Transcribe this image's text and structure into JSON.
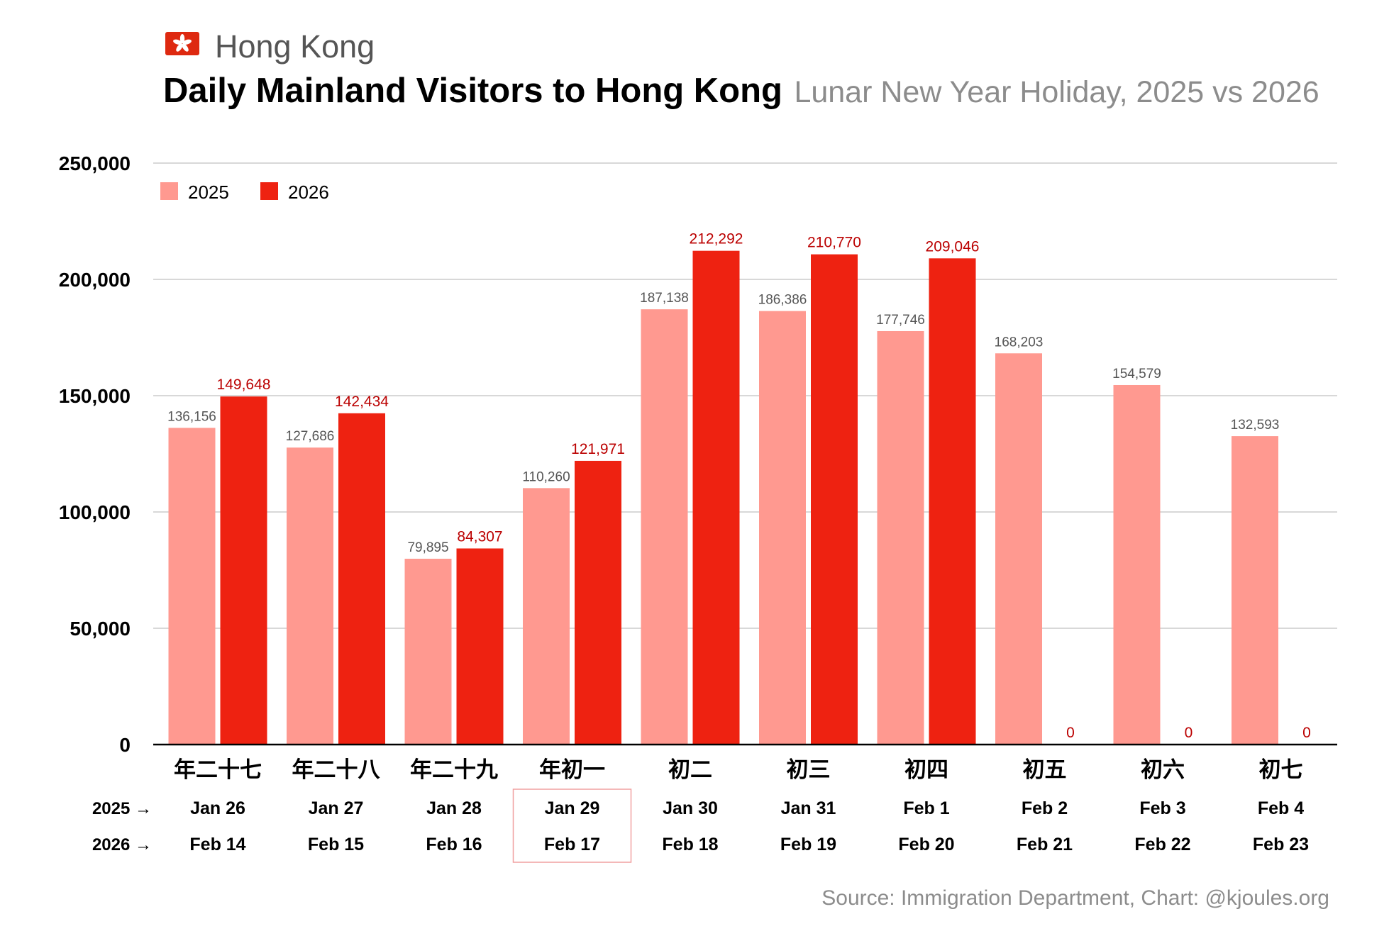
{
  "header": {
    "flag_icon": "hong-kong-flag-icon",
    "region": "Hong Kong",
    "title": "Daily Mainland Visitors to Hong Kong",
    "subtitle": "Lunar New Year Holiday, 2025 vs 2026"
  },
  "source": "Source: Immigration Department, Chart: @kjoules.org",
  "colors": {
    "s2025": "#ff9990",
    "s2026": "#ee2211",
    "label2025": "#555555",
    "label2026": "#bb0000",
    "highlight": "#f0a0a0"
  },
  "row_labels": {
    "r2025": "2025 →",
    "r2026": "2026 →"
  },
  "highlighted_category": "年初一",
  "chart_data": {
    "type": "bar",
    "title": "Daily Mainland Visitors to Hong Kong",
    "ylim": [
      0,
      250000
    ],
    "yticks": [
      0,
      50000,
      100000,
      150000,
      200000,
      250000
    ],
    "ytick_labels": [
      "0",
      "50,000",
      "100,000",
      "150,000",
      "200,000",
      "250,000"
    ],
    "grid": true,
    "legend": "top-left",
    "categories": [
      "年二十七",
      "年二十八",
      "年二十九",
      "年初一",
      "初二",
      "初三",
      "初四",
      "初五",
      "初六",
      "初七"
    ],
    "dates_2025": [
      "Jan 26",
      "Jan 27",
      "Jan 28",
      "Jan 29",
      "Jan 30",
      "Jan 31",
      "Feb 1",
      "Feb 2",
      "Feb 3",
      "Feb 4"
    ],
    "dates_2026": [
      "Feb 14",
      "Feb 15",
      "Feb 16",
      "Feb 17",
      "Feb 18",
      "Feb 19",
      "Feb 20",
      "Feb 21",
      "Feb 22",
      "Feb 23"
    ],
    "series": [
      {
        "name": "2025",
        "values": [
          136156,
          127686,
          79895,
          110260,
          187138,
          186386,
          177746,
          168203,
          154579,
          132593
        ],
        "labels": [
          "136,156",
          "127,686",
          "79,895",
          "110,260",
          "187,138",
          "186,386",
          "177,746",
          "168,203",
          "154,579",
          "132,593"
        ]
      },
      {
        "name": "2026",
        "values": [
          149648,
          142434,
          84307,
          121971,
          212292,
          210770,
          209046,
          0,
          0,
          0
        ],
        "labels": [
          "149,648",
          "142,434",
          "84,307",
          "121,971",
          "212,292",
          "210,770",
          "209,046",
          "0",
          "0",
          "0"
        ]
      }
    ]
  }
}
